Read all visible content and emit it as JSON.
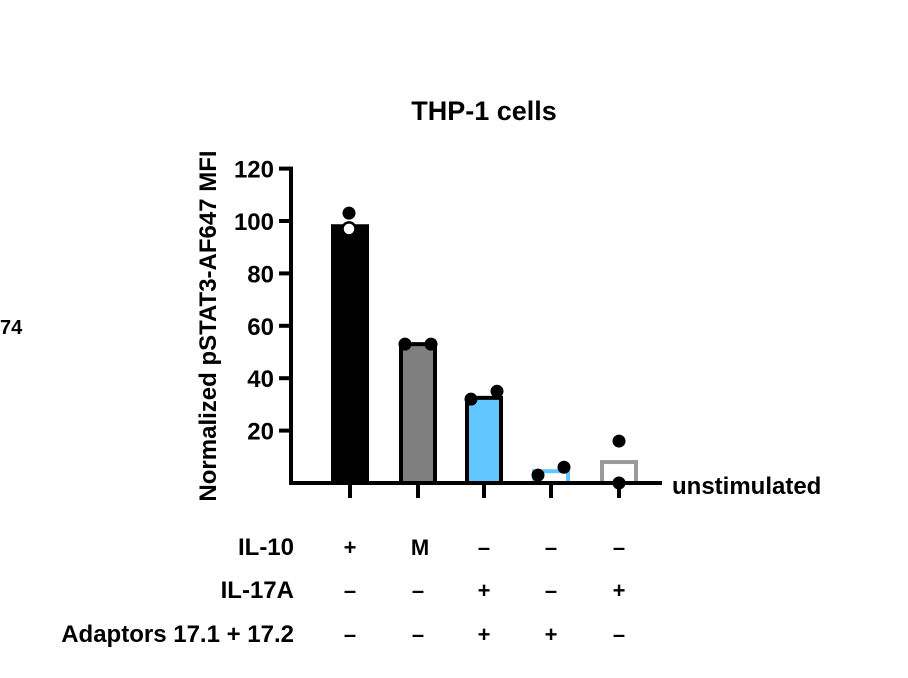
{
  "chart_data": {
    "type": "bar",
    "title": "THP-1 cells",
    "ylabel": "Normalized pSTAT3-AF647 MFI",
    "xlabel": "",
    "ylim": [
      0,
      120
    ],
    "yticks": [
      20,
      40,
      60,
      80,
      100,
      120
    ],
    "baseline_label": "unstimulated",
    "stray_label": "74",
    "bars": [
      {
        "id": "b1",
        "value": 98,
        "fill": "#000000",
        "stroke": "#000000",
        "points": [
          103,
          97
        ]
      },
      {
        "id": "b2",
        "value": 53,
        "fill": "#7f7f7f",
        "stroke": "#000000",
        "points": [
          53,
          53
        ]
      },
      {
        "id": "b3",
        "value": 32.5,
        "fill": "#63c7ff",
        "stroke": "#000000",
        "points": [
          32,
          35
        ]
      },
      {
        "id": "b4",
        "value": 4.5,
        "fill": "#ffffff",
        "stroke": "#63c7ff",
        "points": [
          3,
          6
        ]
      },
      {
        "id": "b5",
        "value": 8,
        "fill": "#ffffff",
        "stroke": "#9a9a9a",
        "points": [
          16,
          0
        ]
      }
    ],
    "condition_rows": [
      {
        "label": "IL-10",
        "marks": [
          "+",
          "M",
          "–",
          "–",
          "–"
        ]
      },
      {
        "label": "IL-17A",
        "marks": [
          "–",
          "–",
          "+",
          "–",
          "+"
        ]
      },
      {
        "label": "Adaptors 17.1 + 17.2",
        "marks": [
          "–",
          "–",
          "+",
          "+",
          "–"
        ]
      }
    ]
  }
}
